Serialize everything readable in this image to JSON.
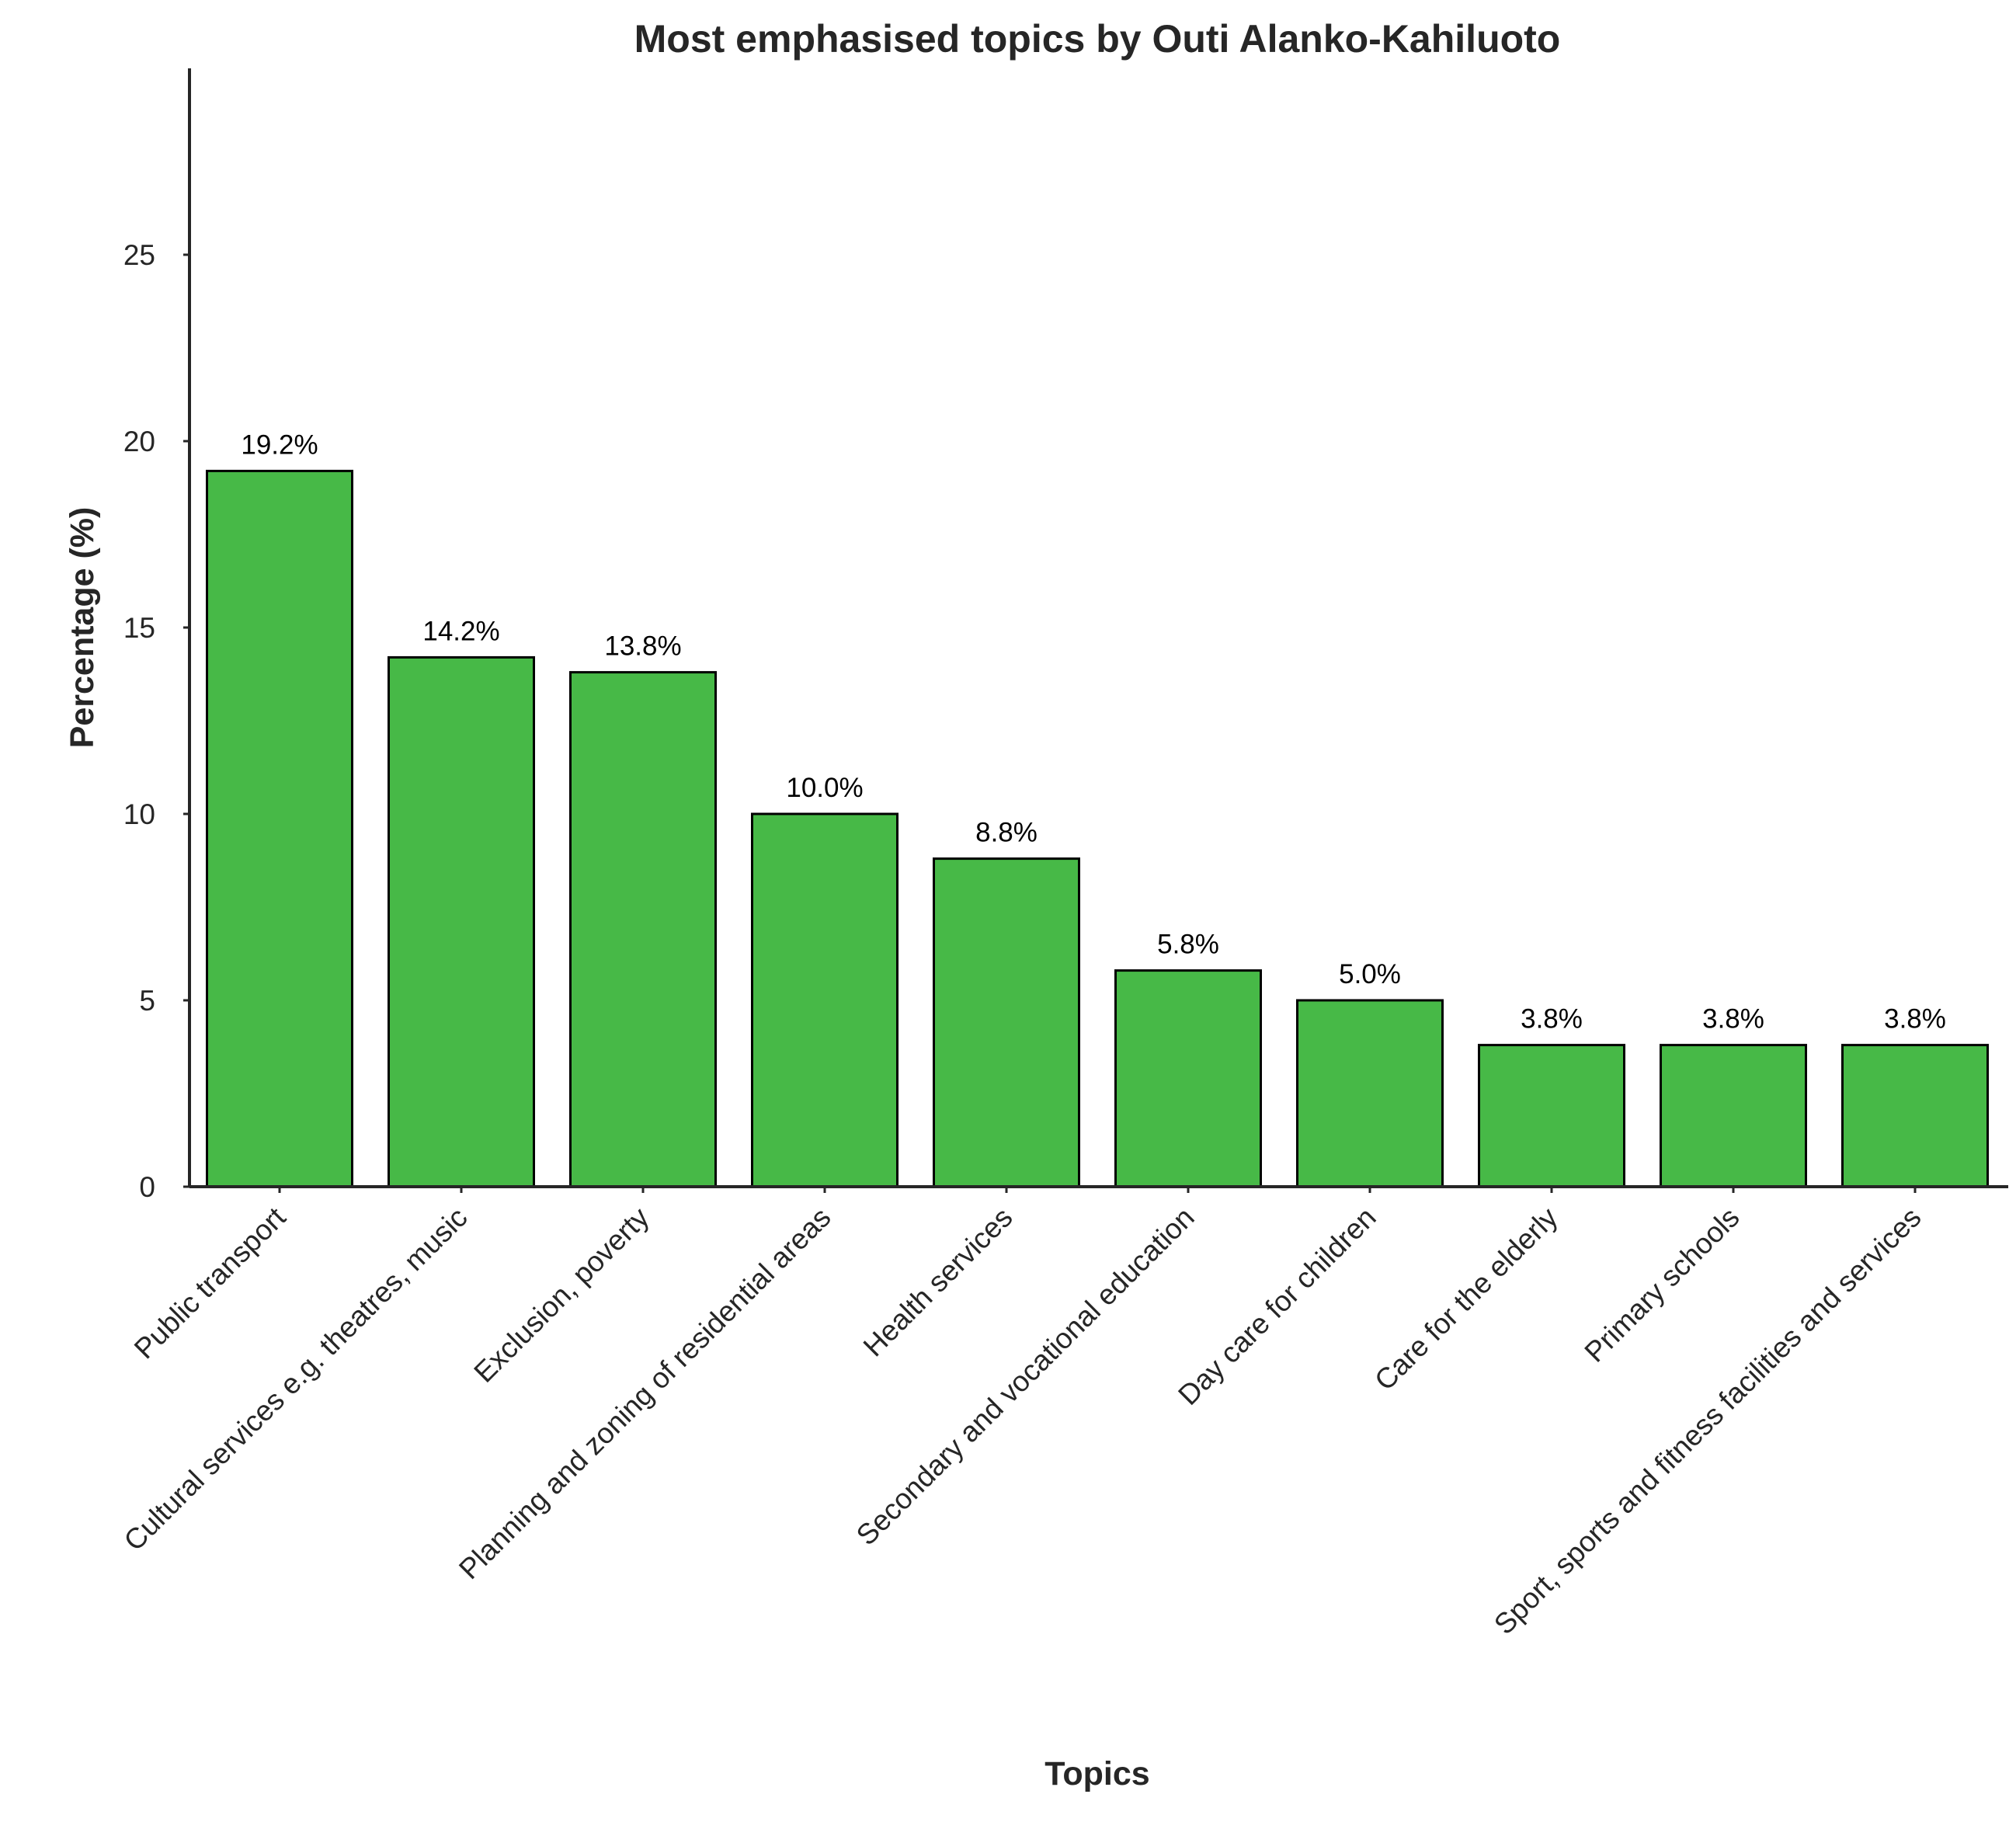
{
  "chart_data": {
    "type": "bar",
    "title": "Most emphasised topics by Outi Alanko-Kahiluoto",
    "xlabel": "Topics",
    "ylabel": "Percentage (%)",
    "categories": [
      "Public transport",
      "Cultural services e.g. theatres, music",
      "Exclusion, poverty",
      "Planning and zoning of residential areas",
      "Health services",
      "Secondary and vocational education",
      "Day care for children",
      "Care for the elderly",
      "Primary schools",
      "Sport, sports and fitness facilities and services"
    ],
    "values": [
      19.2,
      14.2,
      13.8,
      10.0,
      8.8,
      5.8,
      5.0,
      3.8,
      3.8,
      3.8
    ],
    "data_labels": [
      "19.2%",
      "14.2%",
      "13.8%",
      "10.0%",
      "8.8%",
      "5.8%",
      "5.0%",
      "3.8%",
      "3.8%",
      "3.8%"
    ],
    "yticks": [
      0,
      5,
      10,
      15,
      20,
      25
    ],
    "ylim": [
      0,
      30
    ],
    "grid": false,
    "colors": {
      "bar": "#47b947",
      "edge": "#000000",
      "axis": "#262626"
    }
  }
}
